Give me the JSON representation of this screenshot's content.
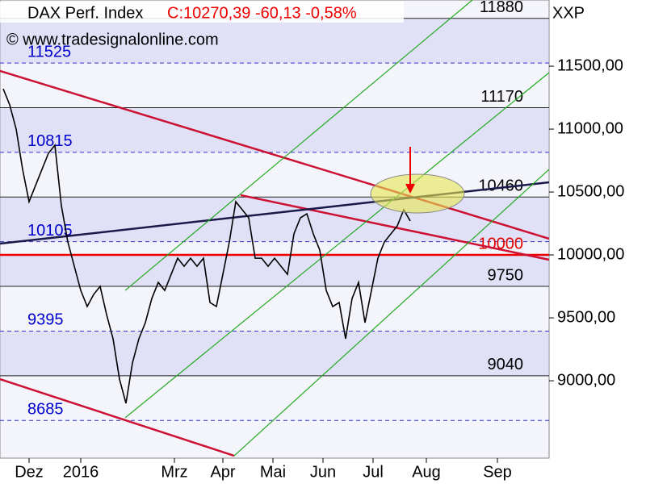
{
  "chart_data": {
    "type": "line",
    "title": "DAX Perf. Index",
    "subtitle": "C:10270,39 -60,13 -0,58%",
    "copyright": "© www.tradesignalonline.com",
    "axis_label": "XXP",
    "xlim": [
      0,
      170
    ],
    "ylim": [
      8385,
      12026
    ],
    "yticks": [
      {
        "value": 9000,
        "label": "9000,00"
      },
      {
        "value": 9500,
        "label": "9500,00"
      },
      {
        "value": 10000,
        "label": "10000,00"
      },
      {
        "value": 10500,
        "label": "10500,00"
      },
      {
        "value": 11000,
        "label": "11000,00"
      },
      {
        "value": 11500,
        "label": "11500,00"
      }
    ],
    "xticks": [
      {
        "value": 9,
        "label": "Dez"
      },
      {
        "value": 25,
        "label": "2016"
      },
      {
        "value": 54,
        "label": "Mrz"
      },
      {
        "value": 69,
        "label": "Apr"
      },
      {
        "value": 84.5,
        "label": "Mai"
      },
      {
        "value": 100,
        "label": "Jun"
      },
      {
        "value": 115.5,
        "label": "Jul"
      },
      {
        "value": 132,
        "label": "Aug"
      },
      {
        "value": 154,
        "label": "Sep"
      }
    ],
    "series": [
      {
        "name": "DAX Perf. Index",
        "color": "#000000",
        "x": [
          1,
          3,
          5,
          7,
          9,
          11,
          13,
          15,
          17,
          19,
          21,
          23,
          25,
          27,
          29,
          31,
          33,
          35,
          37,
          39,
          41,
          43,
          45,
          47,
          49,
          51,
          53,
          55,
          57,
          59,
          61,
          63,
          65,
          67,
          69,
          71,
          73,
          75,
          77,
          79,
          81,
          83,
          85,
          87,
          89,
          91,
          93,
          95,
          97,
          99,
          101,
          103,
          105,
          107,
          109,
          111,
          113,
          115,
          117,
          119,
          121,
          123,
          125,
          127
        ],
        "values": [
          11320,
          11193,
          11000,
          10680,
          10423,
          10552,
          10680,
          10808,
          10872,
          10391,
          10103,
          9910,
          9718,
          9590,
          9686,
          9750,
          9526,
          9334,
          9013,
          8821,
          9141,
          9334,
          9462,
          9654,
          9782,
          9718,
          9846,
          9974,
          9910,
          9974,
          9910,
          9974,
          9622,
          9590,
          9846,
          10103,
          10423,
          10359,
          10295,
          9974,
          9974,
          9910,
          9974,
          9910,
          9846,
          10167,
          10295,
          10327,
          10167,
          10038,
          9718,
          9590,
          9622,
          9334,
          9654,
          9782,
          9462,
          9718,
          9974,
          10103,
          10167,
          10231,
          10359,
          10270
        ]
      }
    ],
    "levels": [
      {
        "value": 11880,
        "color": "#000000"
      },
      {
        "value": 11525,
        "color": "#0000cc"
      },
      {
        "value": 11170,
        "color": "#000000"
      },
      {
        "value": 10815,
        "color": "#0000cc"
      },
      {
        "value": 10460,
        "color": "#000000"
      },
      {
        "value": 10105,
        "color": "#0000cc"
      },
      {
        "value": 10000,
        "color": "#e00000"
      },
      {
        "value": 9750,
        "color": "#000000"
      },
      {
        "value": 9395,
        "color": "#0000cc"
      },
      {
        "value": 9040,
        "color": "#000000"
      },
      {
        "value": 8685,
        "color": "#0000cc"
      }
    ],
    "trendlines": [
      {
        "color": "#cc1133",
        "x": [
          0,
          170
        ],
        "y": [
          11462,
          10129
        ]
      },
      {
        "color": "#cc1133",
        "x": [
          0,
          72.5
        ],
        "y": [
          9013,
          8404
        ]
      },
      {
        "color": "#cc1133",
        "x": [
          74.5,
          170
        ],
        "y": [
          10475,
          9962
        ]
      },
      {
        "color": "#1a1a4a",
        "x": [
          0,
          170
        ],
        "y": [
          10090,
          10577
        ]
      },
      {
        "color": "#22aa22",
        "x": [
          38.75,
          170
        ],
        "y": [
          8706,
          11449
        ]
      },
      {
        "color": "#22aa22",
        "x": [
          38.75,
          146.25
        ],
        "y": [
          9718,
          12026
        ]
      },
      {
        "color": "#22aa22",
        "x": [
          72.5,
          170
        ],
        "y": [
          8404,
          10680
        ]
      }
    ]
  }
}
